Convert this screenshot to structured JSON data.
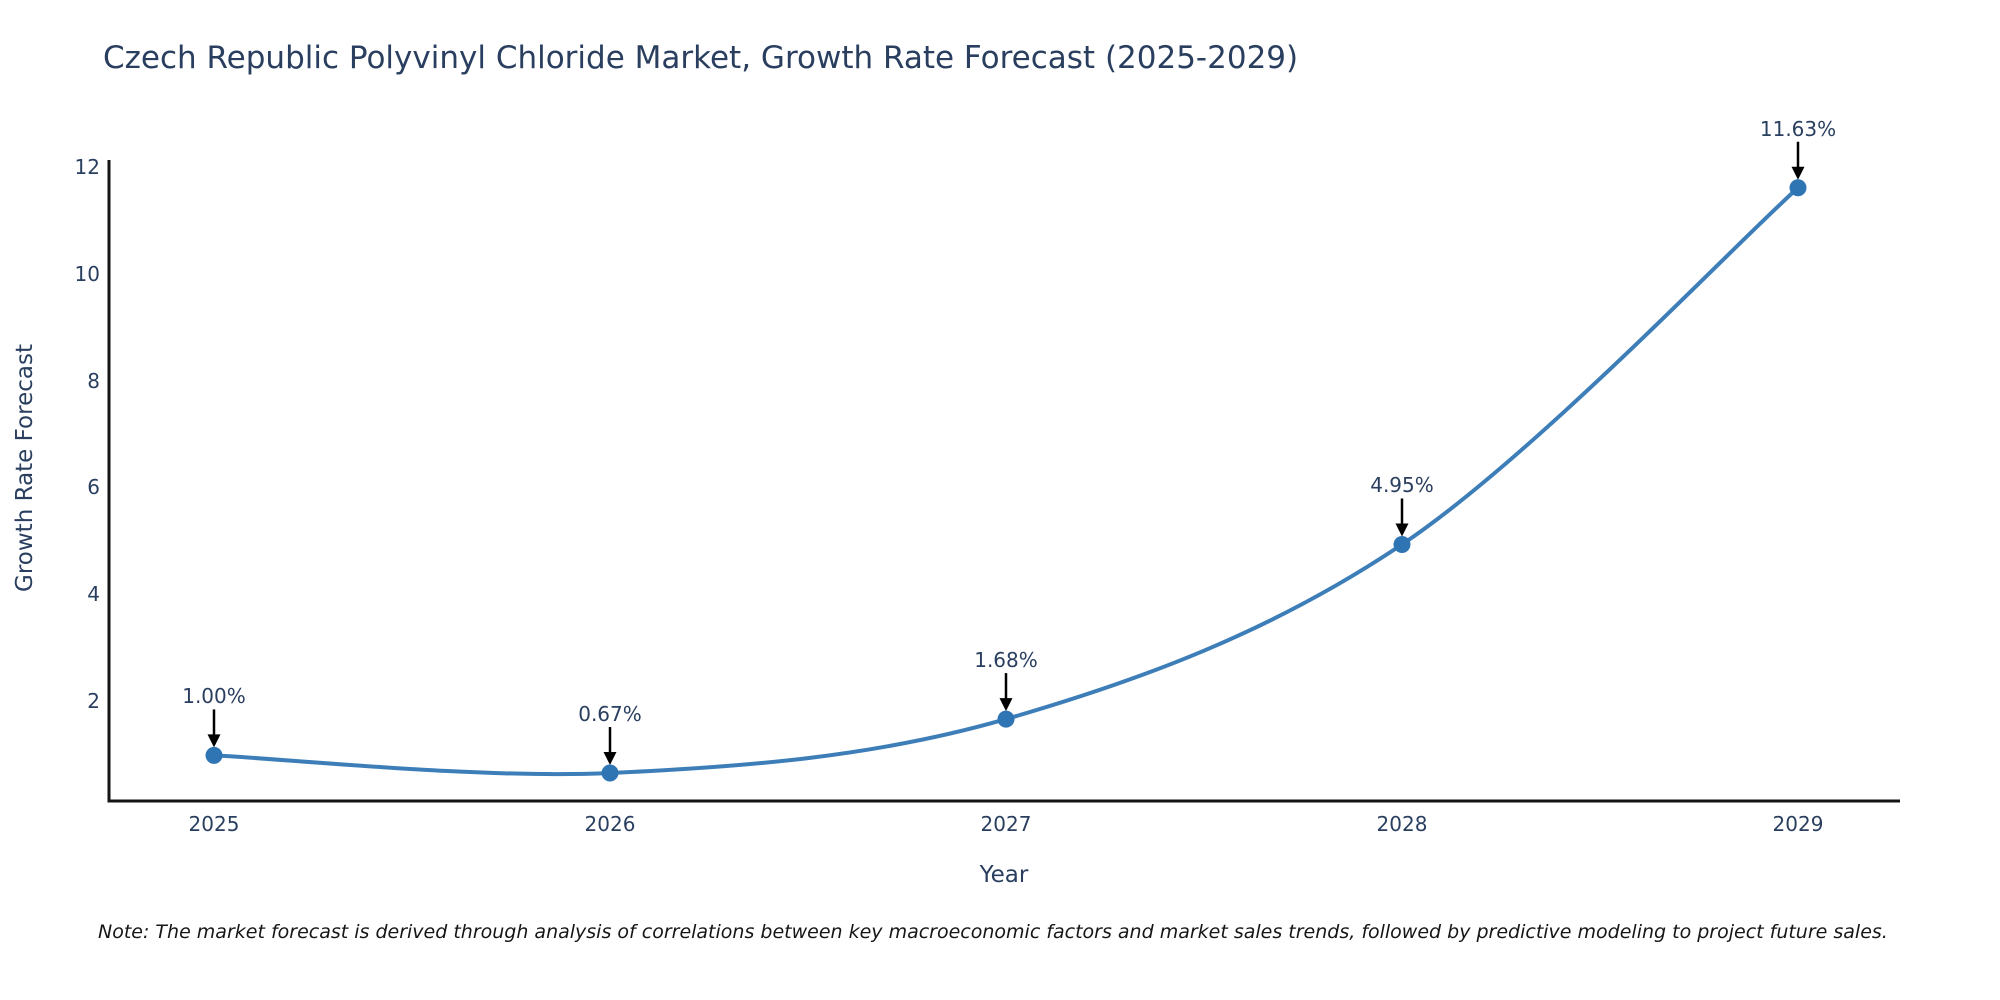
{
  "chart": {
    "note": "Note: The market forecast is derived through analysis of correlations between key macroeconomic factors and market sales trends, followed by predictive modeling to project future sales."
  },
  "colors": {
    "background": "#ffffff",
    "line": "#3d7eb8",
    "marker": "#2f74b3",
    "axis": "#141414",
    "text": "#2a3f5f",
    "arrow": "#000000",
    "note_text": "#161616"
  },
  "chart_data": {
    "type": "line",
    "title": "Czech Republic Polyvinyl Chloride Market, Growth Rate Forecast (2025-2029)",
    "xlabel": "Year",
    "ylabel": "Growth Rate Forecast",
    "x": [
      2025,
      2026,
      2027,
      2028,
      2029
    ],
    "y": [
      1.0,
      0.67,
      1.68,
      4.95,
      11.63
    ],
    "point_labels": [
      "1.00%",
      "0.67%",
      "1.68%",
      "4.95%",
      "11.63%"
    ],
    "yticks": [
      2,
      4,
      6,
      8,
      10,
      12
    ],
    "ylim": [
      0.15,
      12.15
    ],
    "line_shape": "spline",
    "grid": false,
    "legend_position": "none",
    "annotation_arrows": true
  }
}
